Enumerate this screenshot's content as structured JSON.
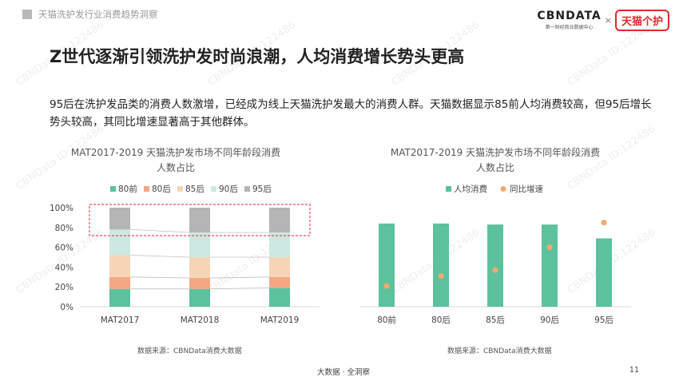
{
  "header": {
    "section_title": "天猫洗护发行业消费趋势洞察",
    "brand_logo": "CBNDATA",
    "brand_sub": "第一财经商业数据中心",
    "brand_x": "×",
    "partner_logo": "天猫个护"
  },
  "headline": "Z世代逐渐引领洗护发时尚浪潮，人均消费增长势头更高",
  "intro": "95后在洗护发品类的消费人数激增，已经成为线上天猫洗护发最大的消费人群。天猫数据显示85前人均消费较高，但95后增长势头较高，其同比增速显著高于其他群体。",
  "watermark": "CBNData ID:122486",
  "left_chart": {
    "title_line1": "MAT2017-2019 天猫洗护发市场不同年龄段消费",
    "title_line2": "人数占比",
    "source": "数据来源：CBNData消费大数据"
  },
  "right_chart": {
    "title_line1": "MAT2017-2019 天猫洗护发市场不同年龄段消费",
    "title_line2": "人数占比",
    "source": "数据来源：CBNData消费大数据"
  },
  "footer": {
    "center": "大数据 · 全洞察",
    "page": "11"
  },
  "chart_data": [
    {
      "type": "bar",
      "stacked": true,
      "percent": true,
      "title": "MAT2017-2019 天猫洗护发市场不同年龄段消费人数占比",
      "categories": [
        "MAT2017",
        "MAT2018",
        "MAT2019"
      ],
      "series": [
        {
          "name": "80前",
          "color": "#5cc29d",
          "values": [
            18,
            18,
            19
          ]
        },
        {
          "name": "80后",
          "color": "#f5a783",
          "values": [
            12,
            11,
            11
          ]
        },
        {
          "name": "85后",
          "color": "#f5d5b6",
          "values": [
            22,
            21,
            20
          ]
        },
        {
          "name": "90后",
          "color": "#cbe9e1",
          "values": [
            26,
            25,
            25
          ]
        },
        {
          "name": "95后",
          "color": "#b5b5b5",
          "values": [
            22,
            25,
            25
          ]
        }
      ],
      "ylim": [
        0,
        100
      ],
      "yticks": [
        "0%",
        "20%",
        "40%",
        "60%",
        "80%",
        "100%"
      ],
      "legend": "top",
      "highlight": "95后"
    },
    {
      "type": "bar",
      "title": "MAT2017-2019 天猫洗护发市场不同年龄段消费人数占比",
      "categories": [
        "80前",
        "80后",
        "85后",
        "90后",
        "95后"
      ],
      "series": [
        {
          "name": "人均消费",
          "kind": "bar",
          "color": "#5cc29d",
          "values": [
            84,
            84,
            83,
            83,
            69
          ]
        },
        {
          "name": "同比增速",
          "kind": "scatter",
          "color": "#f5a96e",
          "values": [
            21,
            31,
            37,
            60,
            85
          ]
        }
      ],
      "ylim": [
        0,
        100
      ],
      "legend": "top"
    }
  ]
}
